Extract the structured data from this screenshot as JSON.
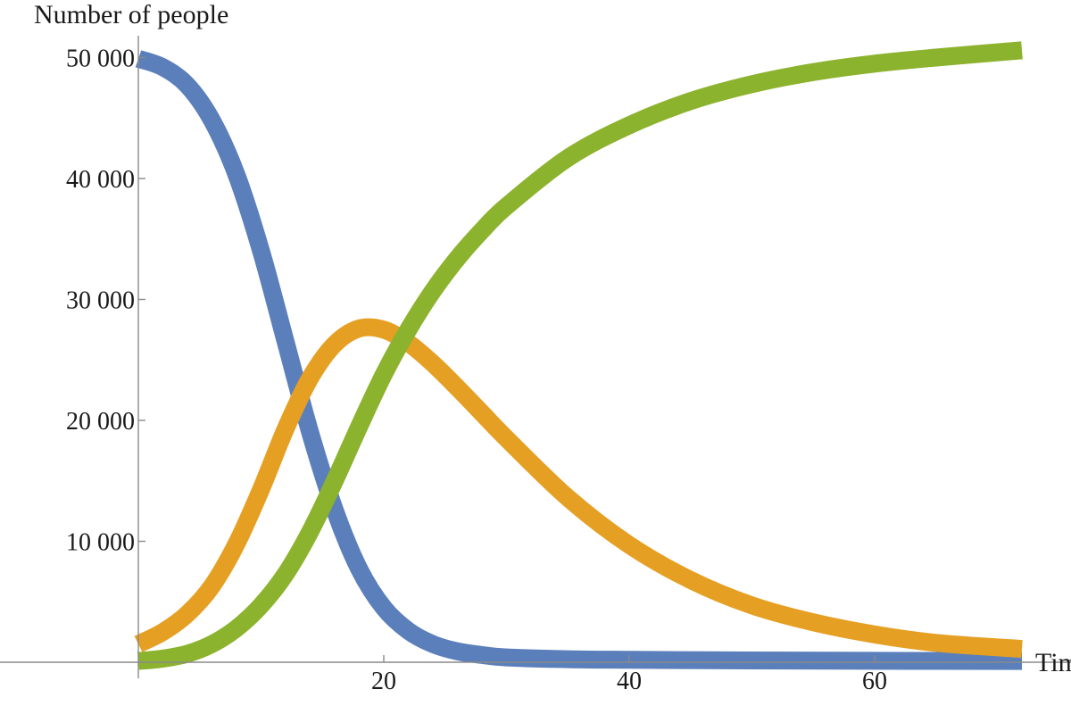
{
  "chart_data": {
    "type": "line",
    "ylabel": "Number of people",
    "xlabel": "Tim",
    "xlim": [
      -0.5,
      72
    ],
    "ylim": [
      0,
      52000
    ],
    "x_ticks": [
      20,
      40,
      60
    ],
    "x_tick_labels": [
      "20",
      "40",
      "60"
    ],
    "y_ticks": [
      10000,
      20000,
      30000,
      40000,
      50000
    ],
    "y_tick_labels": [
      "10 000",
      "20 000",
      "30 000",
      "40 000",
      "50 000"
    ],
    "grid": false,
    "legend": "none",
    "series": [
      {
        "color": "#5b7fbb",
        "x": [
          0,
          2,
          4,
          6,
          8,
          10,
          12,
          14,
          16,
          18,
          20,
          22,
          24,
          26,
          28,
          30,
          35,
          40,
          50,
          60,
          72
        ],
        "y": [
          49900,
          49200,
          47700,
          44800,
          40300,
          34000,
          26500,
          19000,
          12600,
          7700,
          4500,
          2600,
          1500,
          900,
          600,
          400,
          250,
          200,
          150,
          120,
          100
        ]
      },
      {
        "color": "#e5a024",
        "x": [
          0,
          2,
          4,
          6,
          8,
          10,
          12,
          14,
          16,
          18,
          20,
          22,
          24,
          26,
          28,
          30,
          35,
          40,
          45,
          50,
          55,
          60,
          65,
          72
        ],
        "y": [
          1500,
          2500,
          4000,
          6300,
          9800,
          14300,
          19300,
          23500,
          26300,
          27600,
          27500,
          26400,
          24700,
          22700,
          20600,
          18500,
          13600,
          9700,
          6800,
          4700,
          3300,
          2300,
          1600,
          1100
        ]
      },
      {
        "color": "#8cb32e",
        "x": [
          0,
          2,
          4,
          6,
          8,
          10,
          12,
          14,
          16,
          18,
          20,
          22,
          24,
          26,
          28,
          30,
          35,
          40,
          45,
          50,
          55,
          60,
          65,
          72
        ],
        "y": [
          100,
          300,
          700,
          1500,
          2800,
          4700,
          7300,
          10800,
          15000,
          19500,
          23800,
          27500,
          30700,
          33400,
          35700,
          37700,
          41700,
          44400,
          46400,
          47800,
          48800,
          49500,
          50000,
          50600
        ]
      }
    ]
  }
}
